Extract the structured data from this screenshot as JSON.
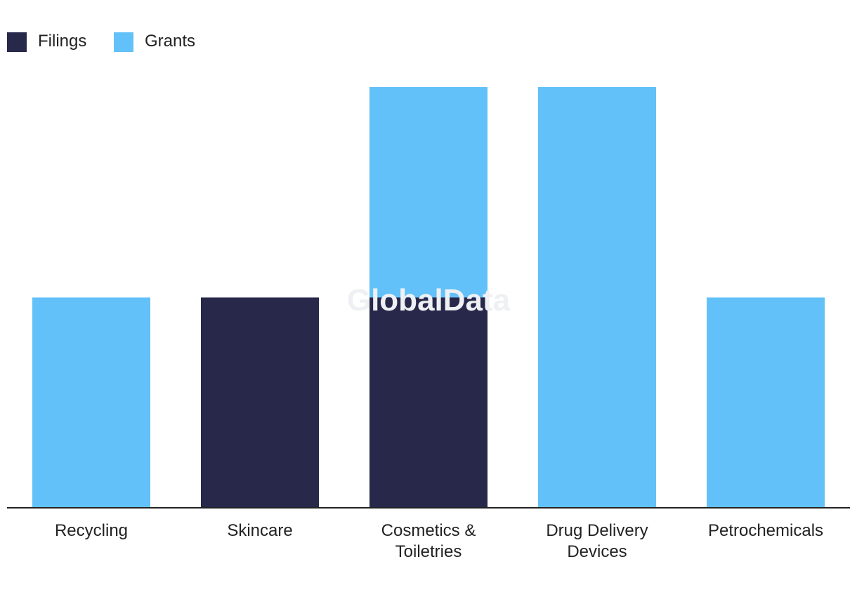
{
  "chart_data": {
    "type": "bar",
    "stacked": true,
    "title": "",
    "xlabel": "",
    "ylabel": "",
    "categories": [
      "Recycling",
      "Skincare",
      "Cosmetics & Toiletries",
      "Drug Delivery Devices",
      "Petrochemicals"
    ],
    "category_lines": [
      [
        "Recycling"
      ],
      [
        "Skincare"
      ],
      [
        "Cosmetics &",
        "Toiletries"
      ],
      [
        "Drug Delivery",
        "Devices"
      ],
      [
        "Petrochemicals"
      ]
    ],
    "series": [
      {
        "name": "Filings",
        "color": "#27284a",
        "values": [
          0,
          1,
          1,
          0,
          0
        ]
      },
      {
        "name": "Grants",
        "color": "#62c1f8",
        "values": [
          1,
          0,
          1,
          2,
          1
        ]
      }
    ],
    "ylim": [
      0,
      2
    ],
    "grid": false,
    "legend_position": "top-left"
  },
  "legend": {
    "filings_label": "Filings",
    "grants_label": "Grants"
  },
  "watermark": "GlobalData",
  "colors": {
    "filings": "#27284a",
    "grants": "#62c1f8",
    "axis": "#222222"
  }
}
